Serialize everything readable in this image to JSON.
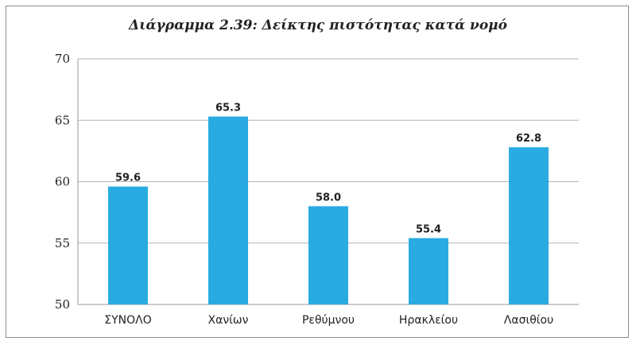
{
  "chart_data": {
    "type": "bar",
    "title": "Διάγραμμα 2.39: Δείκτης πιστότητας κατά νομό",
    "xlabel": "",
    "ylabel": "",
    "categories": [
      "ΣΥΝΟΛΟ",
      "Χανίων",
      "Ρεθύμνου",
      "Ηρακλείου",
      "Λασιθίου"
    ],
    "values": [
      59.6,
      65.3,
      58.0,
      55.4,
      62.8
    ],
    "value_labels": [
      "59.6",
      "65.3",
      "58.0",
      "55.4",
      "62.8"
    ],
    "ylim": [
      50,
      70
    ],
    "yticks": [
      50,
      55,
      60,
      65,
      70
    ],
    "grid": true,
    "legend": "none",
    "bar_color": "#29abe2",
    "grid_color": "#b3b3b3"
  }
}
